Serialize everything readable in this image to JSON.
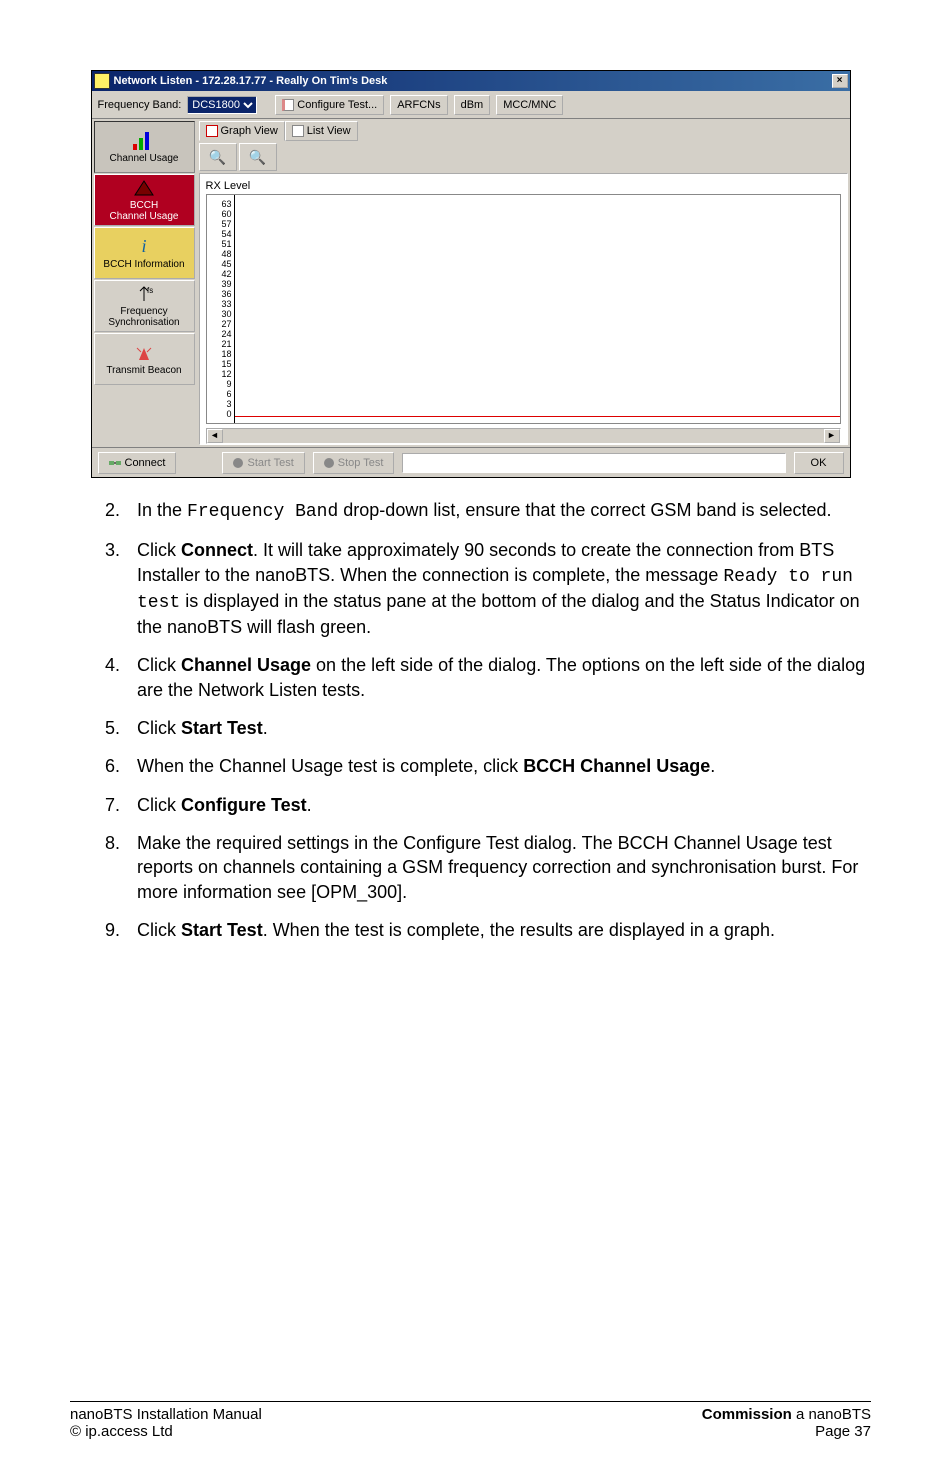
{
  "dialog": {
    "title": "Network Listen - 172.28.17.77 - Really On Tim's Desk",
    "toolbar": {
      "freqband_label": "Frequency Band:",
      "freqband_value": "DCS1800",
      "configure": "Configure Test...",
      "arfcns": "ARFCNs",
      "dbm": "dBm",
      "mccmnc": "MCC/MNC"
    },
    "side": {
      "channel_usage": "Channel Usage",
      "bcch_channel_usage": "BCCH\nChannel Usage",
      "bcch_info": "BCCH Information",
      "freq_sync": "Frequency\nSynchronisation",
      "transmit_beacon": "Transmit Beacon"
    },
    "view": {
      "graph": "Graph View",
      "list": "List View"
    },
    "graph": {
      "title": "RX Level",
      "yticks": [
        "63",
        "60",
        "57",
        "54",
        "51",
        "48",
        "45",
        "42",
        "39",
        "36",
        "33",
        "30",
        "27",
        "24",
        "21",
        "18",
        "15",
        "12",
        "9",
        "6",
        "3",
        "0"
      ]
    },
    "bottom": {
      "connect": "Connect",
      "start": "Start Test",
      "stop": "Stop Test",
      "ok": "OK"
    }
  },
  "steps": {
    "s2a": "In the ",
    "s2_code": "Frequency Band",
    "s2b": " drop-down list, ensure that the correct GSM band is selected.",
    "s3a": "Click ",
    "s3_bold": "Connect",
    "s3b": ". It will take approximately 90 seconds to create the connection from BTS Installer to the nanoBTS. When the connection is complete, the message ",
    "s3_code": "Ready to run test",
    "s3c": " is displayed in the status pane at the bottom of the dialog and the Status Indicator on the nanoBTS will flash green.",
    "s4a": "Click ",
    "s4_bold": "Channel Usage",
    "s4b": " on the left side of the dialog. The options on the left side of the dialog are the Network Listen tests.",
    "s5a": "Click ",
    "s5_bold": "Start Test",
    "s5b": ".",
    "s6a": "When the Channel Usage test is complete, click ",
    "s6_bold": "BCCH Channel Usage",
    "s6b": ".",
    "s7a": "Click ",
    "s7_bold": "Configure Test",
    "s7b": ".",
    "s8": "Make the required settings in the Configure Test dialog. The BCCH Channel Usage test reports on channels containing a GSM frequency correction and synchronisation burst. For more information see [OPM_300].",
    "s9a": "Click ",
    "s9_bold": "Start Test",
    "s9b": ". When the test is complete, the results are displayed in a graph."
  },
  "footer": {
    "left1": "nanoBTS Installation Manual",
    "left2": "© ip.access Ltd",
    "right1_bold": "Commission",
    "right1_rest": " a nanoBTS",
    "right2": "Page 37"
  }
}
